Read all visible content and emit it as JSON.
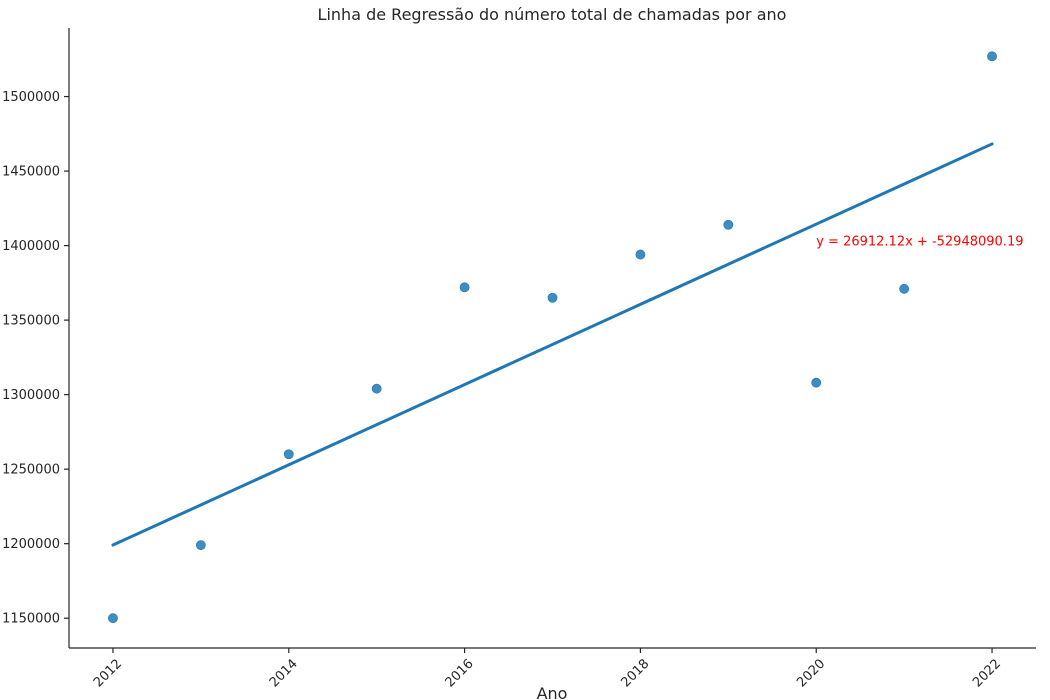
{
  "chart_data": {
    "type": "scatter",
    "title": "Linha de Regressão do número total de chamadas por ano",
    "xlabel": "Ano",
    "ylabel": "",
    "xlim": [
      2011.5,
      2022.5
    ],
    "ylim": [
      1130000,
      1546000
    ],
    "x": [
      2012,
      2013,
      2014,
      2015,
      2016,
      2017,
      2018,
      2019,
      2020,
      2021,
      2022
    ],
    "y": [
      1150000,
      1199000,
      1260000,
      1304000,
      1372000,
      1365000,
      1394000,
      1414000,
      1308000,
      1371000,
      1527000
    ],
    "x_ticks": [
      2012,
      2014,
      2016,
      2018,
      2020,
      2022
    ],
    "x_tick_labels": [
      "2012",
      "2014",
      "2016",
      "2018",
      "2020",
      "2022"
    ],
    "y_ticks": [
      1150000,
      1200000,
      1250000,
      1300000,
      1350000,
      1400000,
      1450000,
      1500000
    ],
    "y_tick_labels": [
      "1150000",
      "1200000",
      "1250000",
      "1300000",
      "1350000",
      "1400000",
      "1450000",
      "1500000"
    ],
    "regression": {
      "slope": 26912.12,
      "intercept": -52948090.19,
      "x_range": [
        2012,
        2022
      ]
    },
    "annotation": {
      "text": "y = 26912.12x + -52948090.19",
      "x": 2020,
      "y": 1400000,
      "color": "#ff0000"
    },
    "colors": {
      "points": "#1f77b4",
      "line": "#1f77b4",
      "axis": "#262626"
    },
    "grid": false,
    "legend": "none"
  }
}
